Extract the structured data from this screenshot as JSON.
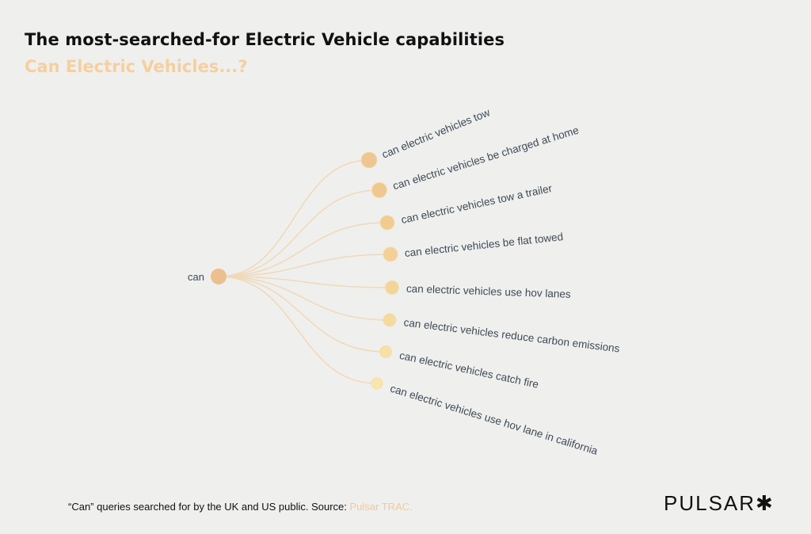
{
  "title": "The most-searched-for Electric Vehicle capabilities",
  "subtitle": "Can Electric Vehicles...?",
  "tree": {
    "root": "can",
    "children": [
      {
        "label": "can electric vehicles tow",
        "color": "#edc692"
      },
      {
        "label": "can electric vehicles be charged at home",
        "color": "#efc890"
      },
      {
        "label": "can electric vehicles tow a trailer",
        "color": "#f0cb92"
      },
      {
        "label": "can electric vehicles be flat towed",
        "color": "#f2d096"
      },
      {
        "label": "can electric vehicles use hov lanes",
        "color": "#f3d49b"
      },
      {
        "label": "can electric vehicles reduce carbon emissions",
        "color": "#f5da9f"
      },
      {
        "label": "can electric vehicles catch fire",
        "color": "#f7e0a4"
      },
      {
        "label": "can electric vehicles use hov lane in california",
        "color": "#f8e6aa"
      }
    ],
    "root_color": "#ecc08e",
    "link_color": "#f0d8b8",
    "label_color": "#3d4a55"
  },
  "footer": {
    "text": "“Can” queries searched for by the UK and US public. Source: ",
    "source": "Pulsar TRAC."
  },
  "logo": "PULSAR✱"
}
